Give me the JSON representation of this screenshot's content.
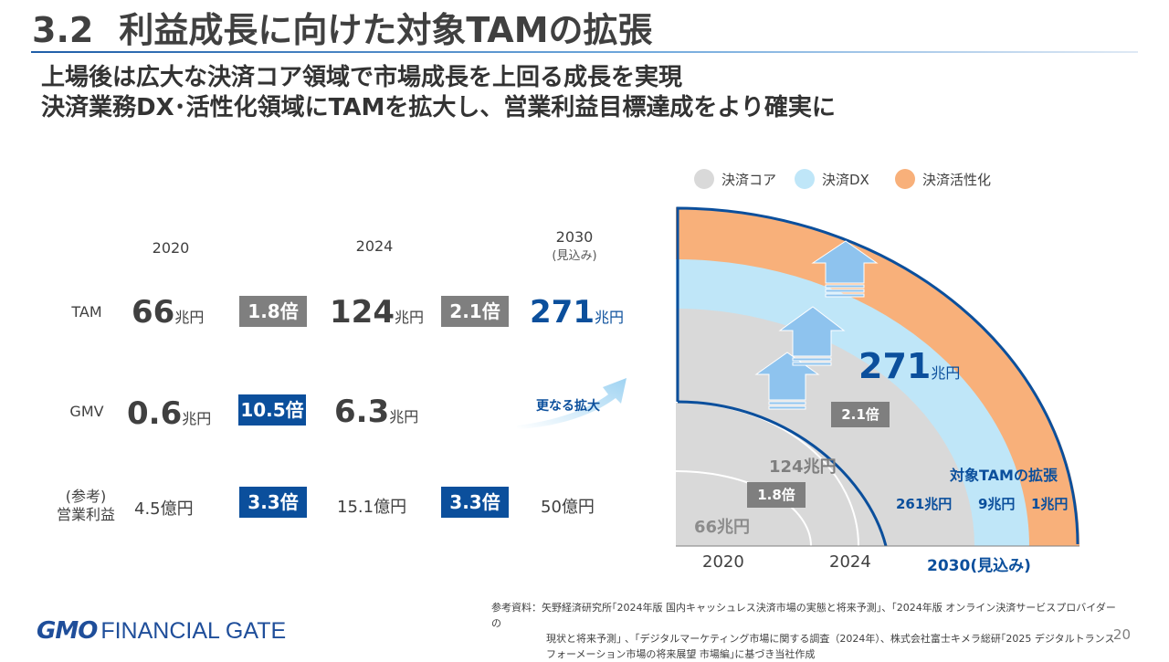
{
  "title": {
    "number": "3.2",
    "text": "利益成長に向けた対象TAMの拡張"
  },
  "subtitles": [
    "上場後は広大な決済コア領域で市場成長を上回る成長を実現",
    "決済業務DX･活性化領域にTAMを拡大し、営業利益目標達成をより確実に"
  ],
  "table": {
    "years": [
      "2020",
      "2024",
      "2030"
    ],
    "forecast_note": "(見込み)",
    "rows": {
      "tam": {
        "label": "TAM",
        "v2020": "66",
        "v2024": "124",
        "v2030": "271",
        "unit": "兆円",
        "m1": "1.8倍",
        "m2": "2.1倍"
      },
      "gmv": {
        "label": "GMV",
        "v2020": "0.6",
        "v2024": "6.3",
        "unit": "兆円",
        "m1": "10.5倍",
        "arrow_label": "更なる拡大"
      },
      "op": {
        "label_line1": "(参考)",
        "label_line2": "営業利益",
        "v2020": "4.5億円",
        "v2024": "15.1億円",
        "v2030": "50億円",
        "m1": "3.3倍",
        "m2": "3.3倍"
      }
    }
  },
  "legend": [
    {
      "label": "決済コア",
      "color": "#d9d9d9"
    },
    {
      "label": "決済DX",
      "color": "#bfe6f8"
    },
    {
      "label": "決済活性化",
      "color": "#f8b07a"
    }
  ],
  "diagram": {
    "total_value": "271",
    "total_unit": "兆円",
    "mult_2030": "2.1倍",
    "mult_2024": "1.8倍",
    "label_2024": "124兆円",
    "label_2020": "66兆円",
    "expansion_label": "対象TAMの拡張",
    "seg_core": "261兆円",
    "seg_dx": "9兆円",
    "seg_act": "1兆円",
    "x_2020": "2020",
    "x_2024": "2024",
    "x_2030": "2030(見込み)"
  },
  "footnote": {
    "line1": "参考資料：矢野経済研究所｢2024年版 国内キャッシュレス決済市場の実態と将来予測｣、｢2024年版 オンライン決済サービスプロバイダーの",
    "line2": "現状と将来予測｣ 、｢デジタルマーケティング市場に関する調査（2024年）、株式会社富士キメラ総研｢2025 デジタルトランス",
    "line3": "フォーメーション市場の将来展望 市場編｣に基づき当社作成"
  },
  "logo": {
    "mark": "GMO",
    "name": "FINANCIAL GATE"
  },
  "page_number": "20"
}
